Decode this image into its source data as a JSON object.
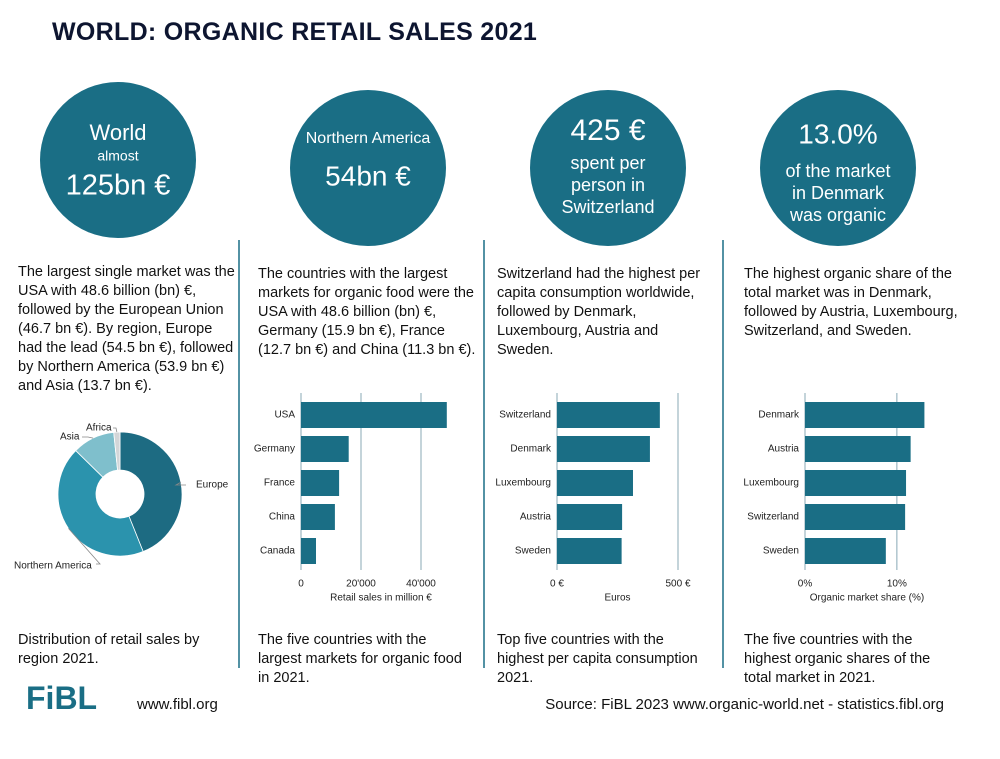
{
  "title": "WORLD: ORGANIC RETAIL SALES 2021",
  "panels": [
    {
      "circle": [
        "World",
        "almost",
        "125bn €"
      ],
      "text": "The largest single market was the USA with 48.6 billion (bn) €, followed by the European Union (46.7 bn €). By region, Europe had the lead (54.5 bn €), followed by Northern America (53.9 bn €) and Asia (13.7 bn €).",
      "caption": "Distribution of retail sales by region 2021."
    },
    {
      "circle": [
        "Northern America",
        "54bn €"
      ],
      "text": "The countries with the largest markets for organic food were the USA with 48.6 billion (bn) €, Germany (15.9 bn €), France (12.7 bn €) and China (11.3 bn €).",
      "caption": "The five countries with the largest markets for organic food in 2021."
    },
    {
      "circle": [
        "425 €",
        "spent per",
        "person in",
        "Switzerland"
      ],
      "text": "Switzerland had the highest per capita consumption worldwide, followed by Denmark, Luxembourg,  Austria and Sweden.",
      "caption": "Top five countries with the highest per capita consumption 2021."
    },
    {
      "circle": [
        "13.0%",
        "of the market",
        "in Denmark",
        "was organic"
      ],
      "text": "The highest organic share of the total market was in Denmark, followed by Austria, Luxembourg, Switzerland, and Sweden.",
      "caption": "The five countries with the highest organic shares of the total market in 2021."
    }
  ],
  "chart_data": [
    {
      "type": "pie",
      "categories": [
        "Europe",
        "Northern America",
        "Asia",
        "Africa"
      ],
      "values": [
        54.5,
        53.9,
        13.7,
        2
      ],
      "colors": [
        "#1d6b82",
        "#2b93ad",
        "#7fbfcc",
        "#d3d6d8"
      ]
    },
    {
      "type": "bar",
      "categories": [
        "USA",
        "Germany",
        "France",
        "China",
        "Canada"
      ],
      "values": [
        48600,
        15900,
        12700,
        11300,
        5000
      ],
      "color": "#1a6e85",
      "xlim": [
        0,
        50000
      ],
      "xticks": [
        0,
        {
          "value": 20000,
          "label": "20'000"
        },
        {
          "value": 40000,
          "label": "40'000"
        }
      ],
      "x_label": "Retail sales in million €"
    },
    {
      "type": "bar",
      "categories": [
        "Switzerland",
        "Denmark",
        "Luxembourg",
        "Austria",
        "Sweden"
      ],
      "values": [
        425,
        384,
        314,
        269,
        267
      ],
      "color": "#1a6e85",
      "xlim": [
        0,
        500
      ],
      "xticks": [
        {
          "value": 0,
          "label": "0 €"
        },
        {
          "value": 500,
          "label": "500 €"
        }
      ],
      "x_label": "Euros"
    },
    {
      "type": "bar",
      "categories": [
        "Denmark",
        "Austria",
        "Luxembourg",
        "Switzerland",
        "Sweden"
      ],
      "values": [
        13.0,
        11.5,
        11.0,
        10.9,
        8.8
      ],
      "color": "#1a6e85",
      "xlim": [
        0,
        13.5
      ],
      "xticks": [
        {
          "value": 0,
          "label": "0%"
        },
        {
          "value": 10,
          "label": "10%"
        }
      ],
      "x_label": "Organic market share (%)"
    }
  ],
  "footer": {
    "logo": "FiBL",
    "website": "www.fibl.org",
    "source": "Source: FiBL 2023 www.organic-world.net - statistics.fibl.org"
  }
}
